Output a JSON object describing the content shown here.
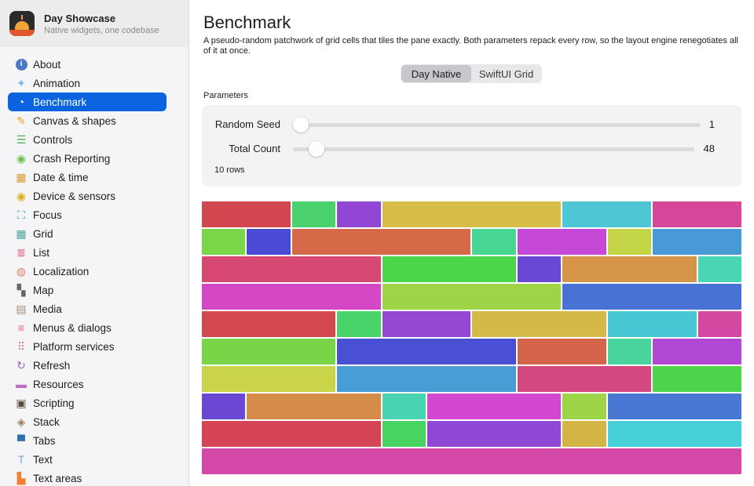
{
  "app": {
    "title": "Day Showcase",
    "subtitle": "Native widgets, one codebase"
  },
  "sidebar": {
    "items": [
      {
        "label": "About",
        "icon": "info-icon",
        "glyph": "i",
        "color": "#4a78c2",
        "active": false
      },
      {
        "label": "Animation",
        "icon": "sparkles-icon",
        "glyph": "✦",
        "color": "#7fb3e8",
        "active": false
      },
      {
        "label": "Benchmark",
        "icon": "speedometer-icon",
        "glyph": "◔",
        "color": "#ffffff",
        "active": true
      },
      {
        "label": "Canvas & shapes",
        "icon": "paintbrush-icon",
        "glyph": "✎",
        "color": "#f0a030",
        "active": false
      },
      {
        "label": "Controls",
        "icon": "sliders-icon",
        "glyph": "☰",
        "color": "#4caf50",
        "active": false
      },
      {
        "label": "Crash Reporting",
        "icon": "antenna-icon",
        "glyph": "◉",
        "color": "#6cc24a",
        "active": false
      },
      {
        "label": "Date & time",
        "icon": "calendar-icon",
        "glyph": "▦",
        "color": "#d89a2a",
        "active": false
      },
      {
        "label": "Device & sensors",
        "icon": "sensor-icon",
        "glyph": "◉",
        "color": "#e0b020",
        "active": false
      },
      {
        "label": "Focus",
        "icon": "focus-icon",
        "glyph": "⛶",
        "color": "#3aa39a",
        "active": false
      },
      {
        "label": "Grid",
        "icon": "grid-icon",
        "glyph": "▦",
        "color": "#4aa3a0",
        "active": false
      },
      {
        "label": "List",
        "icon": "list-icon",
        "glyph": "≣",
        "color": "#e0556a",
        "active": false
      },
      {
        "label": "Localization",
        "icon": "globe-icon",
        "glyph": "◍",
        "color": "#e08070",
        "active": false
      },
      {
        "label": "Map",
        "icon": "map-icon",
        "glyph": "▚",
        "color": "#666666",
        "active": false
      },
      {
        "label": "Media",
        "icon": "film-icon",
        "glyph": "▤",
        "color": "#a08a7a",
        "active": false
      },
      {
        "label": "Menus & dialogs",
        "icon": "menu-icon",
        "glyph": "≡",
        "color": "#e06070",
        "active": false
      },
      {
        "label": "Platform services",
        "icon": "dots-grid-icon",
        "glyph": "⠿",
        "color": "#e08090",
        "active": false
      },
      {
        "label": "Refresh",
        "icon": "refresh-icon",
        "glyph": "↻",
        "color": "#9a6ac0",
        "active": false
      },
      {
        "label": "Resources",
        "icon": "folder-icon",
        "glyph": "▬",
        "color": "#c070c0",
        "active": false
      },
      {
        "label": "Scripting",
        "icon": "terminal-icon",
        "glyph": "▣",
        "color": "#5a4a3a",
        "active": false
      },
      {
        "label": "Stack",
        "icon": "stack-icon",
        "glyph": "◈",
        "color": "#a08060",
        "active": false
      },
      {
        "label": "Tabs",
        "icon": "tabs-icon",
        "glyph": "▀",
        "color": "#3070b0",
        "active": false
      },
      {
        "label": "Text",
        "icon": "text-icon",
        "glyph": "T",
        "color": "#7aa7d8",
        "active": false
      },
      {
        "label": "Text areas",
        "icon": "document-icon",
        "glyph": "▙",
        "color": "#f08030",
        "active": false
      }
    ]
  },
  "main": {
    "title": "Benchmark",
    "description": "A pseudo-random patchwork of grid cells that tiles the pane exactly. Both parameters repack every row, so the layout engine renegotiates all of it at once.",
    "segments": [
      {
        "label": "Day Native",
        "active": true
      },
      {
        "label": "SwiftUI Grid",
        "active": false
      }
    ],
    "parameters_label": "Parameters",
    "params": [
      {
        "label": "Random Seed",
        "value": "1",
        "fraction": 0.0
      },
      {
        "label": "Total Count",
        "value": "48",
        "fraction": 0.04
      }
    ],
    "rows_text": "10 rows"
  },
  "grid": {
    "rows": [
      [
        {
          "span": 2,
          "color": "#d2474f"
        },
        {
          "span": 1,
          "color": "#4ad06c"
        },
        {
          "span": 1,
          "color": "#9147d4"
        },
        {
          "span": 4,
          "color": "#d6be48"
        },
        {
          "span": 2,
          "color": "#4ec6d6"
        },
        {
          "span": 2,
          "color": "#d6479a"
        }
      ],
      [
        {
          "span": 1,
          "color": "#7ad648"
        },
        {
          "span": 1,
          "color": "#4a4ad6"
        },
        {
          "span": 4,
          "color": "#d66a48"
        },
        {
          "span": 1,
          "color": "#48d694"
        },
        {
          "span": 2,
          "color": "#c648d6"
        },
        {
          "span": 1,
          "color": "#c4d648"
        },
        {
          "span": 2,
          "color": "#489ad6"
        }
      ],
      [
        {
          "span": 4,
          "color": "#d64872"
        },
        {
          "span": 3,
          "color": "#4ad648"
        },
        {
          "span": 1,
          "color": "#6a48d6"
        },
        {
          "span": 3,
          "color": "#d69448"
        },
        {
          "span": 1,
          "color": "#48d6b4"
        }
      ],
      [
        {
          "span": 4,
          "color": "#d448c6"
        },
        {
          "span": 4,
          "color": "#a0d448"
        },
        {
          "span": 4,
          "color": "#4872d4"
        }
      ],
      [
        {
          "span": 3,
          "color": "#d44850"
        },
        {
          "span": 1,
          "color": "#48d46a"
        },
        {
          "span": 2,
          "color": "#9448d4"
        },
        {
          "span": 3,
          "color": "#d4b848"
        },
        {
          "span": 2,
          "color": "#48c8d4"
        },
        {
          "span": 1,
          "color": "#d448a2"
        }
      ],
      [
        {
          "span": 3,
          "color": "#7ad448"
        },
        {
          "span": 4,
          "color": "#4a50d4"
        },
        {
          "span": 2,
          "color": "#d4644a"
        },
        {
          "span": 1,
          "color": "#48d49c"
        },
        {
          "span": 2,
          "color": "#b048d4"
        }
      ],
      [
        {
          "span": 3,
          "color": "#cad448"
        },
        {
          "span": 4,
          "color": "#489ed4"
        },
        {
          "span": 3,
          "color": "#d44880"
        },
        {
          "span": 2,
          "color": "#4ed44a"
        }
      ],
      [
        {
          "span": 1,
          "color": "#6a48d4"
        },
        {
          "span": 3,
          "color": "#d48c48"
        },
        {
          "span": 1,
          "color": "#48d4b0"
        },
        {
          "span": 3,
          "color": "#d248d0"
        },
        {
          "span": 1,
          "color": "#9ed448"
        },
        {
          "span": 3,
          "color": "#4878d4"
        }
      ],
      [
        {
          "span": 4,
          "color": "#d44454"
        },
        {
          "span": 1,
          "color": "#48d462"
        },
        {
          "span": 3,
          "color": "#8e48d4"
        },
        {
          "span": 1,
          "color": "#d4b444"
        },
        {
          "span": 3,
          "color": "#48d0d8"
        }
      ],
      [
        {
          "span": 12,
          "color": "#d448a8"
        }
      ]
    ]
  }
}
